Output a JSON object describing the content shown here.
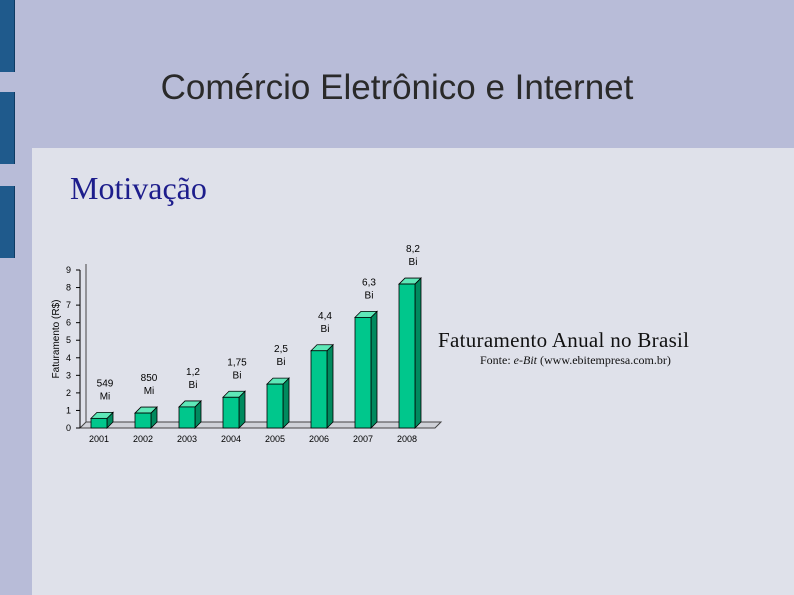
{
  "slide": {
    "title": "Comércio Eletrônico e Internet",
    "subtitle": "Motivação",
    "chart_title": "Faturamento Anual no Brasil",
    "source_prefix": "Fonte: ",
    "source_name": "e-Bit",
    "source_suffix": " (www.ebitempresa.com.br)"
  },
  "colors": {
    "background": "#b8bcd8",
    "panel": "#dfe1ea",
    "accent_bar": "#1f5a8c",
    "bar_front": "#00c78c",
    "bar_side": "#008a5e",
    "bar_top": "#5ee8b8",
    "subtitle": "#1d1d8c"
  },
  "chart_data": {
    "type": "bar",
    "title": "",
    "xlabel": "",
    "ylabel": "Faturamento (R$)",
    "ylim": [
      0,
      9
    ],
    "yticks": [
      0,
      1,
      2,
      3,
      4,
      5,
      6,
      7,
      8,
      9
    ],
    "grid": false,
    "categories": [
      "2001",
      "2002",
      "2003",
      "2004",
      "2005",
      "2006",
      "2007",
      "2008"
    ],
    "values": [
      0.549,
      0.85,
      1.2,
      1.75,
      2.5,
      4.4,
      6.3,
      8.2
    ],
    "data_labels": [
      [
        "549",
        "Mi"
      ],
      [
        "850",
        "Mi"
      ],
      [
        "1,2",
        "Bi"
      ],
      [
        "1,75",
        "Bi"
      ],
      [
        "2,5",
        "Bi"
      ],
      [
        "4,4",
        "Bi"
      ],
      [
        "6,3",
        "Bi"
      ],
      [
        "8,2",
        "Bi"
      ]
    ]
  }
}
